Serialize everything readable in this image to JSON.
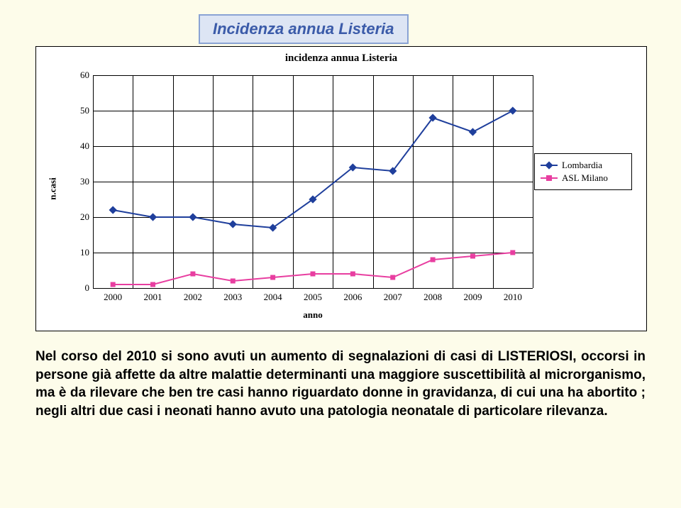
{
  "title": "Incidenza annua Listeria",
  "chart": {
    "type": "line",
    "title": "incidenza annua Listeria",
    "ylabel": "n.casi",
    "xlabel": "anno",
    "background_color": "#ffffff",
    "grid_color": "#000000",
    "ylim": [
      0,
      60
    ],
    "ytick_step": 10,
    "yticks": [
      0,
      10,
      20,
      30,
      40,
      50,
      60
    ],
    "categories": [
      "2000",
      "2001",
      "2002",
      "2003",
      "2004",
      "2005",
      "2006",
      "2007",
      "2008",
      "2009",
      "2010"
    ],
    "series": [
      {
        "name": "Lombardia",
        "color": "#1f3f9c",
        "marker_fill": "#1f3f9c",
        "marker": "diamond",
        "marker_size": 8,
        "line_width": 2,
        "values": [
          22,
          20,
          20,
          18,
          17,
          25,
          34,
          33,
          48,
          44,
          50
        ]
      },
      {
        "name": "ASL Milano",
        "color": "#e83ea0",
        "marker_fill": "#e83ea0",
        "marker": "square",
        "marker_size": 7,
        "line_width": 2,
        "values": [
          1,
          1,
          4,
          2,
          3,
          4,
          4,
          3,
          8,
          9,
          10
        ]
      }
    ],
    "legend_position": "right",
    "title_fontsize": 15,
    "label_fontsize": 13,
    "tick_fontsize": 13
  },
  "paragraph": "Nel corso del 2010 si sono avuti un aumento di segnalazioni di casi di LISTERIOSI, occorsi in persone già affette da altre malattie determinanti una maggiore suscettibilità al microrganismo, ma è da rilevare che ben tre casi hanno riguardato donne in gravidanza, di cui una ha abortito ; negli altri due casi i neonati hanno avuto una patologia neonatale di particolare rilevanza.",
  "page_background": "#fdfcea",
  "title_box": {
    "border_color": "#8aa3d4",
    "bg_color": "#dde5f4",
    "text_color": "#3b5ba9",
    "font_style": "bold italic",
    "font_size": 22
  }
}
